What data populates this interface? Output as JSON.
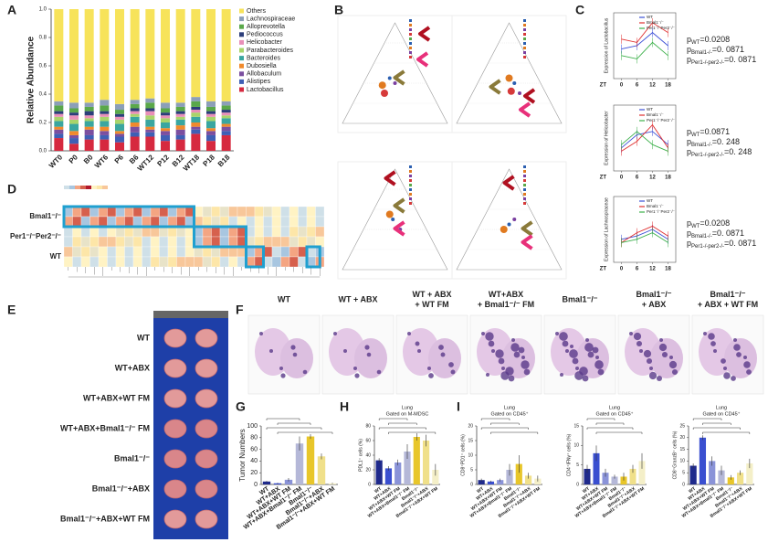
{
  "panel_labels": [
    "A",
    "B",
    "C",
    "D",
    "E",
    "F",
    "G",
    "H",
    "I"
  ],
  "panel_a": {
    "type": "bar",
    "ylabel": "Relative Abundance",
    "categories": [
      "WT0",
      "P0",
      "B0",
      "WT6",
      "P6",
      "B6",
      "WT12",
      "P12",
      "B12",
      "WT18",
      "P18",
      "B18"
    ],
    "ylim": [
      0,
      1
    ],
    "yticks": [
      {
        "value": 0,
        "label": "0.0"
      },
      0.2,
      0.4,
      0.6,
      0.8,
      {
        "value": 1,
        "label": "1.0"
      }
    ],
    "series": [
      {
        "name": "Lactobacillus",
        "color": "#d6293f",
        "values": [
          0.09,
          0.05,
          0.08,
          0.08,
          0.06,
          0.1,
          0.1,
          0.07,
          0.08,
          0.12,
          0.07,
          0.11
        ]
      },
      {
        "name": "Alistipes",
        "color": "#3f5fb5",
        "values": [
          0.03,
          0.04,
          0.03,
          0.03,
          0.04,
          0.03,
          0.03,
          0.04,
          0.03,
          0.03,
          0.04,
          0.03
        ]
      },
      {
        "name": "Allobaculum",
        "color": "#7b4fa0",
        "values": [
          0.03,
          0.02,
          0.04,
          0.03,
          0.02,
          0.04,
          0.02,
          0.03,
          0.04,
          0.02,
          0.03,
          0.03
        ]
      },
      {
        "name": "Dubosiella",
        "color": "#f08a2c",
        "values": [
          0.02,
          0.03,
          0.02,
          0.03,
          0.02,
          0.03,
          0.02,
          0.02,
          0.03,
          0.03,
          0.02,
          0.02
        ]
      },
      {
        "name": "Bacteroides",
        "color": "#3aa6a0",
        "values": [
          0.04,
          0.05,
          0.04,
          0.04,
          0.05,
          0.04,
          0.05,
          0.04,
          0.04,
          0.04,
          0.05,
          0.04
        ]
      },
      {
        "name": "Parabacteroides",
        "color": "#a9d46a",
        "values": [
          0.03,
          0.03,
          0.02,
          0.03,
          0.03,
          0.02,
          0.03,
          0.03,
          0.02,
          0.03,
          0.03,
          0.02
        ]
      },
      {
        "name": "Helicobacter",
        "color": "#e98fb8",
        "values": [
          0.02,
          0.03,
          0.02,
          0.02,
          0.02,
          0.02,
          0.03,
          0.02,
          0.02,
          0.02,
          0.02,
          0.02
        ]
      },
      {
        "name": "Pediococcus",
        "color": "#2c3e7a",
        "values": [
          0.02,
          0.02,
          0.03,
          0.02,
          0.02,
          0.02,
          0.02,
          0.02,
          0.02,
          0.02,
          0.02,
          0.02
        ]
      },
      {
        "name": "Alloprevotella",
        "color": "#5aa84a",
        "values": [
          0.04,
          0.03,
          0.03,
          0.04,
          0.03,
          0.03,
          0.04,
          0.03,
          0.03,
          0.04,
          0.03,
          0.03
        ]
      },
      {
        "name": "Lachnospiraceae",
        "color": "#8c9fb8",
        "values": [
          0.03,
          0.04,
          0.03,
          0.04,
          0.04,
          0.03,
          0.03,
          0.04,
          0.03,
          0.03,
          0.04,
          0.03
        ]
      },
      {
        "name": "Others",
        "color": "#f7e35a",
        "values": [
          0.65,
          0.66,
          0.66,
          0.64,
          0.67,
          0.64,
          0.63,
          0.66,
          0.66,
          0.62,
          0.65,
          0.65
        ]
      }
    ]
  },
  "panel_c": {
    "xlabel": "ZT",
    "charts": [
      {
        "type": "line",
        "ylabel": "Expression of Lactobacillus",
        "x": [
          0,
          6,
          12,
          18
        ],
        "xlim": [
          -3,
          21
        ],
        "xticks": [
          0,
          6,
          12,
          18
        ],
        "ylim": [
          0,
          1
        ],
        "series": [
          {
            "name": "WT",
            "color": "#3b4fd6",
            "values": [
              0.45,
              0.5,
              0.7,
              0.5
            ]
          },
          {
            "name": "Bmal1⁻/⁻",
            "color": "#e03030",
            "values": [
              0.6,
              0.55,
              0.85,
              0.7
            ]
          },
          {
            "name": "Per1⁻/⁻Per2⁻/⁻",
            "color": "#3cb04a",
            "values": [
              0.35,
              0.3,
              0.55,
              0.35
            ]
          }
        ],
        "pvalues": [
          {
            "prefix": "p",
            "group": "WT",
            "text": "=0.0208"
          },
          {
            "prefix": "p",
            "group": "Bmal1-/-",
            "text": "=0. 0871"
          },
          {
            "prefix": "p",
            "group": "Per1-/-per2-/-",
            "text": "=0. 0871"
          }
        ]
      },
      {
        "type": "line",
        "ylabel": "Expression of Helicobacter",
        "x": [
          0,
          6,
          12,
          18
        ],
        "xlim": [
          -3,
          21
        ],
        "xticks": [
          0,
          6,
          12,
          18
        ],
        "ylim": [
          0,
          1
        ],
        "series": [
          {
            "name": "WT",
            "color": "#3b4fd6",
            "values": [
              0.35,
              0.55,
              0.6,
              0.4
            ]
          },
          {
            "name": "Bmal1⁻/⁻",
            "color": "#e03030",
            "values": [
              0.3,
              0.45,
              0.7,
              0.35
            ]
          },
          {
            "name": "Per1⁻/⁻Per2⁻/⁻",
            "color": "#3cb04a",
            "values": [
              0.4,
              0.6,
              0.4,
              0.3
            ]
          }
        ],
        "pvalues": [
          {
            "prefix": "p",
            "group": "WT",
            "text": "=0.0871"
          },
          {
            "prefix": "p",
            "group": "Bmal1-/-",
            "text": "=0. 248"
          },
          {
            "prefix": "p",
            "group": "Per1-/-per2-/-",
            "text": "=0. 248"
          }
        ]
      },
      {
        "type": "line",
        "ylabel": "Expression of Lachnospiraceae",
        "x": [
          0,
          6,
          12,
          18
        ],
        "xlim": [
          -3,
          21
        ],
        "xticks": [
          0,
          6,
          12,
          18
        ],
        "ylim": [
          0,
          1
        ],
        "series": [
          {
            "name": "WT",
            "color": "#3b4fd6",
            "values": [
              0.35,
              0.4,
              0.5,
              0.35
            ]
          },
          {
            "name": "Bmal1⁻/⁻",
            "color": "#e03030",
            "values": [
              0.3,
              0.45,
              0.55,
              0.4
            ]
          },
          {
            "name": "Per1⁻/⁻Per2⁻/⁻",
            "color": "#3cb04a",
            "values": [
              0.3,
              0.35,
              0.45,
              0.3
            ]
          }
        ],
        "pvalues": [
          {
            "prefix": "p",
            "group": "WT",
            "text": "=0.0208"
          },
          {
            "prefix": "p",
            "group": "Bmal1-/-",
            "text": "=0. 0871"
          },
          {
            "prefix": "p",
            "group": "Per1-/-per2-/-",
            "text": "=0. 0871"
          }
        ]
      }
    ]
  },
  "panel_d": {
    "rows": [
      "Bmal1⁻/⁻",
      "Per1⁻/⁻Per2⁻/⁻",
      "WT"
    ]
  },
  "panel_e": {
    "groups": [
      "WT",
      "WT+ABX",
      "WT+ABX+WT FM",
      "WT+ABX+Bmal1⁻/⁻ FM",
      "Bmal1⁻/⁻",
      "Bmal1⁻/⁻+ABX",
      "Bmal1⁻/⁻+ABX+WT FM"
    ]
  },
  "panel_f": {
    "titles": [
      [
        "WT"
      ],
      [
        "WT + ABX"
      ],
      [
        "WT + ABX",
        "+ WT FM"
      ],
      [
        "WT+ABX",
        "+ Bmal1⁻/⁻ FM"
      ],
      [
        "Bmal1⁻/⁻"
      ],
      [
        "Bmal1⁻/⁻",
        "+ ABX"
      ],
      [
        "Bmal1⁻/⁻",
        "+ ABX + WT FM"
      ]
    ]
  },
  "bar_charts": [
    {
      "type": "bar",
      "titles": [],
      "ylabel": "Tumor Numbers",
      "ylim": [
        0,
        100
      ],
      "yticks": [
        0,
        20,
        40,
        60,
        80,
        100
      ],
      "categories": [
        "WT",
        "WT+ABX",
        "WT+ABX+WT FM",
        "WT+ABX+Bmal1⁻/⁻ FM",
        "Bmal1⁻/⁻",
        "Bmal1⁻/⁻+ABX",
        "Bmal1⁻/⁻+ABX+WT FM"
      ],
      "colors": [
        "#1f2a8c",
        "#3a4fd0",
        "#8a93d8",
        "#b5b8d8",
        "#e8c62a",
        "#f0e08a",
        "#f4efc8"
      ],
      "values": [
        5,
        2,
        8,
        70,
        82,
        48,
        2
      ],
      "errors": [
        1,
        1,
        3,
        12,
        4,
        5,
        1
      ]
    },
    {
      "type": "bar",
      "titles": [
        "Lung",
        "Gated on M-MDSC"
      ],
      "ylabel": "PDL1⁺ cells (%)",
      "ylim": [
        0,
        80
      ],
      "yticks": [
        0,
        20,
        40,
        60,
        80
      ],
      "categories": [
        "WT",
        "WT+ABX",
        "WT+ABX+WT FM",
        "WT+ABX+Bmal1⁻/⁻ FM",
        "Bmal1⁻/⁻",
        "Bmal1⁻/⁻+ABX",
        "Bmal1⁻/⁻+ABX+WT FM"
      ],
      "colors": [
        "#1f2a8c",
        "#3a4fd0",
        "#8a93d8",
        "#b5b8d8",
        "#e8c62a",
        "#f0e08a",
        "#f4efc8"
      ],
      "values": [
        33,
        22,
        30,
        45,
        65,
        60,
        20
      ],
      "errors": [
        3,
        3,
        4,
        10,
        5,
        8,
        8
      ]
    },
    {
      "type": "bar",
      "titles": [
        "Lung",
        "Gated on CD45⁺"
      ],
      "ylabel": "CD8⁺PD1⁺ cells (%)",
      "ylim": [
        0,
        20
      ],
      "yticks": [
        0,
        5,
        10,
        15,
        20
      ],
      "categories": [
        "WT",
        "WT+ABX",
        "WT+ABX+WT FM",
        "WT+ABX+Bmal1⁻/⁻ FM",
        "Bmal1⁻/⁻",
        "Bmal1⁻/⁻+ABX",
        "Bmal1⁻/⁻+ABX+WT FM"
      ],
      "colors": [
        "#1f2a8c",
        "#3a4fd0",
        "#8a93d8",
        "#b5b8d8",
        "#e8c62a",
        "#f0e08a",
        "#f4efc8"
      ],
      "values": [
        1.5,
        1,
        1.5,
        5,
        7,
        3,
        2
      ],
      "errors": [
        0.5,
        0.3,
        0.5,
        2,
        3,
        1,
        1
      ]
    },
    {
      "type": "bar",
      "titles": [
        "Lung",
        "Gated on CD45⁺"
      ],
      "ylabel": "CD4⁺IFNγ⁺ cells (%)",
      "ylim": [
        0,
        15
      ],
      "yticks": [
        0,
        5,
        10,
        15
      ],
      "categories": [
        "WT",
        "WT+ABX",
        "WT+ABX+WT FM",
        "WT+ABX+Bmal1⁻/⁻ FM",
        "Bmal1⁻/⁻",
        "Bmal1⁻/⁻+ABX",
        "Bmal1⁻/⁻+ABX+WT FM"
      ],
      "colors": [
        "#1f2a8c",
        "#3a4fd0",
        "#8a93d8",
        "#b5b8d8",
        "#e8c62a",
        "#f0e08a",
        "#f4efc8"
      ],
      "values": [
        4,
        8,
        3,
        2,
        2,
        4,
        6
      ],
      "errors": [
        1,
        2,
        1,
        0.5,
        1,
        1,
        2
      ]
    },
    {
      "type": "bar",
      "titles": [
        "Lung",
        "Gated on CD45⁺"
      ],
      "ylabel": "CD8⁺GranzB⁺ cells (%)",
      "ylim": [
        0,
        25
      ],
      "yticks": [
        0,
        5,
        10,
        15,
        20,
        25
      ],
      "categories": [
        "WT",
        "WT+ABX",
        "WT+ABX+WT FM",
        "WT+ABX+Bmal1⁻/⁻ FM",
        "Bmal1⁻/⁻",
        "Bmal1⁻/⁻+ABX",
        "Bmal1⁻/⁻+ABX+WT FM"
      ],
      "colors": [
        "#1f2a8c",
        "#3a4fd0",
        "#8a93d8",
        "#b5b8d8",
        "#e8c62a",
        "#f0e08a",
        "#f4efc8"
      ],
      "values": [
        8,
        20,
        10,
        6,
        3,
        5,
        9
      ],
      "errors": [
        1,
        1,
        2,
        2,
        1,
        1,
        2
      ]
    }
  ]
}
